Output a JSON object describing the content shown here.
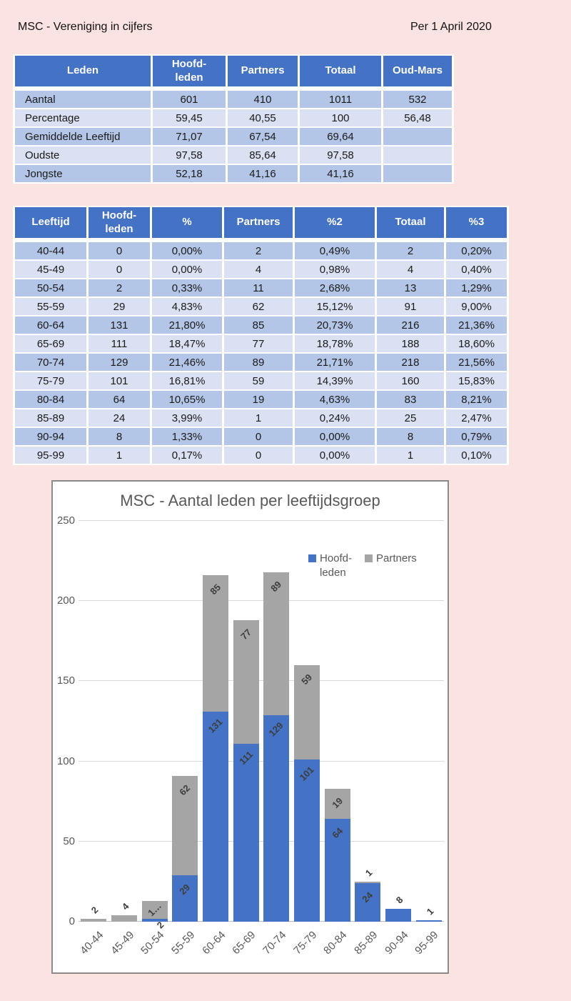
{
  "page": {
    "title": "MSC - Vereniging in cijfers",
    "date": "Per 1 April 2020"
  },
  "colors": {
    "background": "#FBE3E1",
    "table_header": "#4472C4",
    "row_dark": "#B4C6E7",
    "row_light": "#D9E1F2",
    "bar_blue": "#4472C4",
    "bar_gray": "#A5A5A5",
    "chart_text": "#595959"
  },
  "summary_table": {
    "headers": [
      "Leden",
      "Hoofd-\nleden",
      "Partners",
      "Totaal",
      "Oud-Mars"
    ],
    "rows": [
      {
        "label": "Aantal",
        "values": [
          "601",
          "410",
          "1011",
          "532"
        ]
      },
      {
        "label": "Percentage",
        "values": [
          "59,45",
          "40,55",
          "100",
          "56,48"
        ]
      },
      {
        "label": "Gemiddelde Leeftijd",
        "values": [
          "71,07",
          "67,54",
          "69,64",
          ""
        ]
      },
      {
        "label": "Oudste",
        "values": [
          "97,58",
          "85,64",
          "97,58",
          ""
        ]
      },
      {
        "label": "Jongste",
        "values": [
          "52,18",
          "41,16",
          "41,16",
          ""
        ]
      }
    ]
  },
  "age_table": {
    "headers": [
      "Leeftijd",
      "Hoofd-\nleden",
      "%",
      "Partners",
      "%2",
      "Totaal",
      "%3"
    ],
    "rows": [
      [
        "40-44",
        "0",
        "0,00%",
        "2",
        "0,49%",
        "2",
        "0,20%"
      ],
      [
        "45-49",
        "0",
        "0,00%",
        "4",
        "0,98%",
        "4",
        "0,40%"
      ],
      [
        "50-54",
        "2",
        "0,33%",
        "11",
        "2,68%",
        "13",
        "1,29%"
      ],
      [
        "55-59",
        "29",
        "4,83%",
        "62",
        "15,12%",
        "91",
        "9,00%"
      ],
      [
        "60-64",
        "131",
        "21,80%",
        "85",
        "20,73%",
        "216",
        "21,36%"
      ],
      [
        "65-69",
        "111",
        "18,47%",
        "77",
        "18,78%",
        "188",
        "18,60%"
      ],
      [
        "70-74",
        "129",
        "21,46%",
        "89",
        "21,71%",
        "218",
        "21,56%"
      ],
      [
        "75-79",
        "101",
        "16,81%",
        "59",
        "14,39%",
        "160",
        "15,83%"
      ],
      [
        "80-84",
        "64",
        "10,65%",
        "19",
        "4,63%",
        "83",
        "8,21%"
      ],
      [
        "85-89",
        "24",
        "3,99%",
        "1",
        "0,24%",
        "25",
        "2,47%"
      ],
      [
        "90-94",
        "8",
        "1,33%",
        "0",
        "0,00%",
        "8",
        "0,79%"
      ],
      [
        "95-99",
        "1",
        "0,17%",
        "0",
        "0,00%",
        "1",
        "0,10%"
      ]
    ]
  },
  "chart_data": {
    "type": "bar",
    "stacked": true,
    "title": "MSC - Aantal leden per leeftijdsgroep",
    "categories": [
      "40-44",
      "45-49",
      "50-54",
      "55-59",
      "60-64",
      "65-69",
      "70-74",
      "75-79",
      "80-84",
      "85-89",
      "90-94",
      "95-99"
    ],
    "series": [
      {
        "name": "Hoofd-\nleden",
        "color": "#4472C4",
        "values": [
          0,
          0,
          2,
          29,
          131,
          111,
          129,
          101,
          64,
          24,
          8,
          1
        ]
      },
      {
        "name": "Partners",
        "color": "#A5A5A5",
        "values": [
          2,
          4,
          11,
          62,
          85,
          77,
          89,
          59,
          19,
          1,
          0,
          0
        ]
      }
    ],
    "bar_labels": [
      {
        "hoofd": "",
        "hoofd_pos": "",
        "partners": "2",
        "partners_pos": "above"
      },
      {
        "hoofd": "",
        "hoofd_pos": "",
        "partners": "4",
        "partners_pos": "above"
      },
      {
        "hoofd": "2",
        "hoofd_pos": "axis",
        "partners": "1…",
        "partners_pos": "center"
      },
      {
        "hoofd": "29",
        "hoofd_pos": "center",
        "partners": "62",
        "partners_pos": "center"
      },
      {
        "hoofd": "131",
        "hoofd_pos": "center",
        "partners": "85",
        "partners_pos": "center"
      },
      {
        "hoofd": "111",
        "hoofd_pos": "center",
        "partners": "77",
        "partners_pos": "center"
      },
      {
        "hoofd": "129",
        "hoofd_pos": "center",
        "partners": "89",
        "partners_pos": "center"
      },
      {
        "hoofd": "101",
        "hoofd_pos": "center",
        "partners": "59",
        "partners_pos": "center"
      },
      {
        "hoofd": "64",
        "hoofd_pos": "center",
        "partners": "19",
        "partners_pos": "center"
      },
      {
        "hoofd": "24",
        "hoofd_pos": "center",
        "partners": "1",
        "partners_pos": "above"
      },
      {
        "hoofd": "8",
        "hoofd_pos": "above",
        "partners": "",
        "partners_pos": ""
      },
      {
        "hoofd": "1",
        "hoofd_pos": "above",
        "partners": "",
        "partners_pos": ""
      }
    ],
    "ylim": [
      0,
      250
    ],
    "yticks": [
      0,
      50,
      100,
      150,
      200,
      250
    ],
    "xlabel": "",
    "ylabel": "",
    "grid": true,
    "legend_position": "inside-top-right"
  }
}
